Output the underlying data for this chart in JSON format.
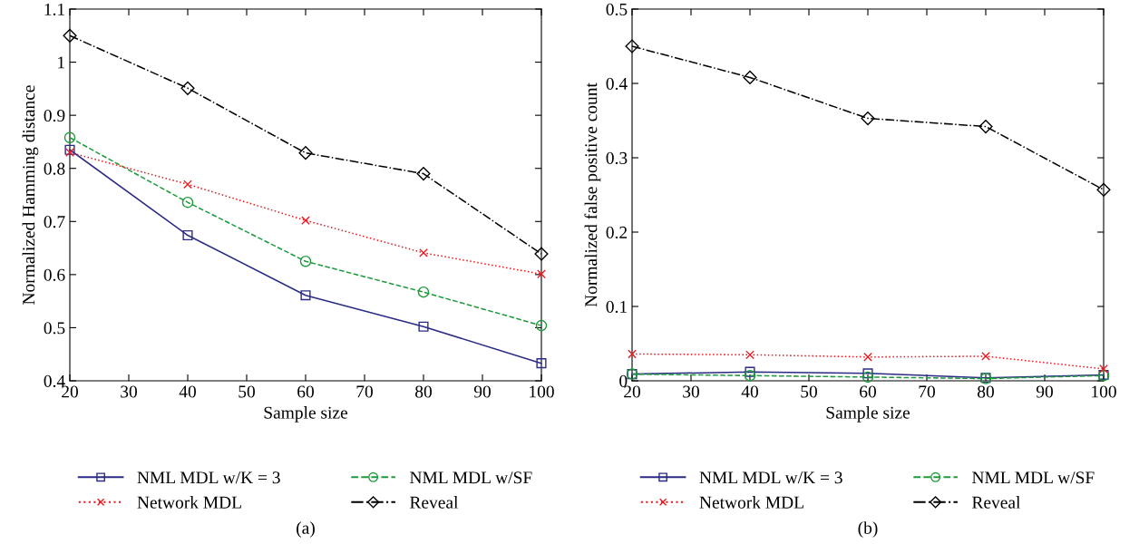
{
  "chart_data": [
    {
      "type": "line",
      "xlabel": "Sample size",
      "ylabel": "Normalized Hamming distance",
      "x": [
        20,
        40,
        60,
        80,
        100
      ],
      "xlim": [
        20,
        100
      ],
      "xticks": [
        20,
        30,
        40,
        50,
        60,
        70,
        80,
        90,
        100
      ],
      "ylim": [
        0.4,
        1.1
      ],
      "yticks": [
        0.4,
        0.5,
        0.6,
        0.7,
        0.8,
        0.9,
        1,
        1.1
      ],
      "grid": false,
      "legend": "bottom",
      "annotations": [
        "(a)"
      ],
      "series": [
        {
          "name": "NML MDL w/K = 3",
          "color": "#2b2b85",
          "marker": "square",
          "line_style": "solid",
          "values": [
            0.835,
            0.674,
            0.561,
            0.502,
            0.433
          ]
        },
        {
          "name": "NML MDL w/SF",
          "color": "#1f9a3c",
          "marker": "circle",
          "line_style": "dashed",
          "values": [
            0.858,
            0.736,
            0.625,
            0.567,
            0.504
          ]
        },
        {
          "name": "Network MDL",
          "color": "#e8191e",
          "marker": "cross",
          "line_style": "dotted",
          "values": [
            0.83,
            0.77,
            0.702,
            0.641,
            0.601
          ]
        },
        {
          "name": "Reveal",
          "color": "#000000",
          "marker": "diamond",
          "line_style": "dashdot",
          "values": [
            1.05,
            0.951,
            0.829,
            0.79,
            0.639
          ]
        }
      ]
    },
    {
      "type": "line",
      "xlabel": "Sample size",
      "ylabel": "Normalized false positive count",
      "x": [
        20,
        40,
        60,
        80,
        100
      ],
      "xlim": [
        20,
        100
      ],
      "xticks": [
        20,
        30,
        40,
        50,
        60,
        70,
        80,
        90,
        100
      ],
      "ylim": [
        0,
        0.5
      ],
      "yticks": [
        0,
        0.1,
        0.2,
        0.3,
        0.4,
        0.5
      ],
      "grid": false,
      "legend": "bottom",
      "annotations": [
        "(b)"
      ],
      "series": [
        {
          "name": "NML MDL w/K = 3",
          "color": "#2b2b85",
          "marker": "square",
          "line_style": "solid",
          "values": [
            0.009,
            0.012,
            0.01,
            0.004,
            0.008
          ]
        },
        {
          "name": "NML MDL w/SF",
          "color": "#1f9a3c",
          "marker": "circle",
          "line_style": "dashed",
          "values": [
            0.009,
            0.007,
            0.005,
            0.003,
            0.007
          ]
        },
        {
          "name": "Network MDL",
          "color": "#e8191e",
          "marker": "cross",
          "line_style": "dotted",
          "values": [
            0.036,
            0.035,
            0.032,
            0.033,
            0.016
          ]
        },
        {
          "name": "Reveal",
          "color": "#000000",
          "marker": "diamond",
          "line_style": "dashdot",
          "values": [
            0.45,
            0.408,
            0.353,
            0.342,
            0.257
          ]
        }
      ]
    }
  ]
}
